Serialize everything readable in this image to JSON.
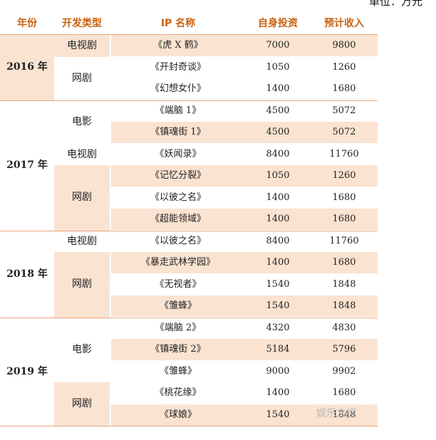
{
  "unit_label": "单位：万元",
  "headers": [
    "年份",
    "开发类型",
    "IP 名称",
    "自身投资",
    "预计收入"
  ],
  "rows": [
    {
      "ip": "《虎 X 鹤》",
      "invest": "7000",
      "revenue": "9800"
    },
    {
      "ip": "《开封奇谈》",
      "invest": "1050",
      "revenue": "1260"
    },
    {
      "ip": "《幻想女仆》",
      "invest": "1400",
      "revenue": "1680"
    },
    {
      "ip": "《端脑 1》",
      "invest": "4500",
      "revenue": "5072"
    },
    {
      "ip": "《镇魂街 1》",
      "invest": "4500",
      "revenue": "5072"
    },
    {
      "ip": "《妖闻录》",
      "invest": "8400",
      "revenue": "11760"
    },
    {
      "ip": "《记忆分裂》",
      "invest": "1050",
      "revenue": "1260"
    },
    {
      "ip": "《以彼之名》",
      "invest": "1400",
      "revenue": "1680"
    },
    {
      "ip": "《超能领域》",
      "invest": "1400",
      "revenue": "1680"
    },
    {
      "ip": "《以彼之名》",
      "invest": "8400",
      "revenue": "11760"
    },
    {
      "ip": "《暴走武林学园》",
      "invest": "1400",
      "revenue": "1680"
    },
    {
      "ip": "《无视者》",
      "invest": "1540",
      "revenue": "1848"
    },
    {
      "ip": "《雏蜂》",
      "invest": "1540",
      "revenue": "1848"
    },
    {
      "ip": "《端脑 2》",
      "invest": "4320",
      "revenue": "4830"
    },
    {
      "ip": "《镇魂街 2》",
      "invest": "5184",
      "revenue": "5796"
    },
    {
      "ip": "《雏蜂》",
      "invest": "9000",
      "revenue": "9902"
    },
    {
      "ip": "《桃花缘》",
      "invest": "1400",
      "revenue": "1680"
    },
    {
      "ip": "《球娘》",
      "invest": "1540",
      "revenue": "1848"
    }
  ],
  "years": [
    "2016 年",
    "2017 年",
    "2018 年",
    "2019 年"
  ],
  "types": [
    "电视剧",
    "网剧",
    "电影",
    "电视剧",
    "网剧",
    "电视剧",
    "网剧",
    "电影",
    "网剧"
  ],
  "watermark": "娱乐文娱"
}
